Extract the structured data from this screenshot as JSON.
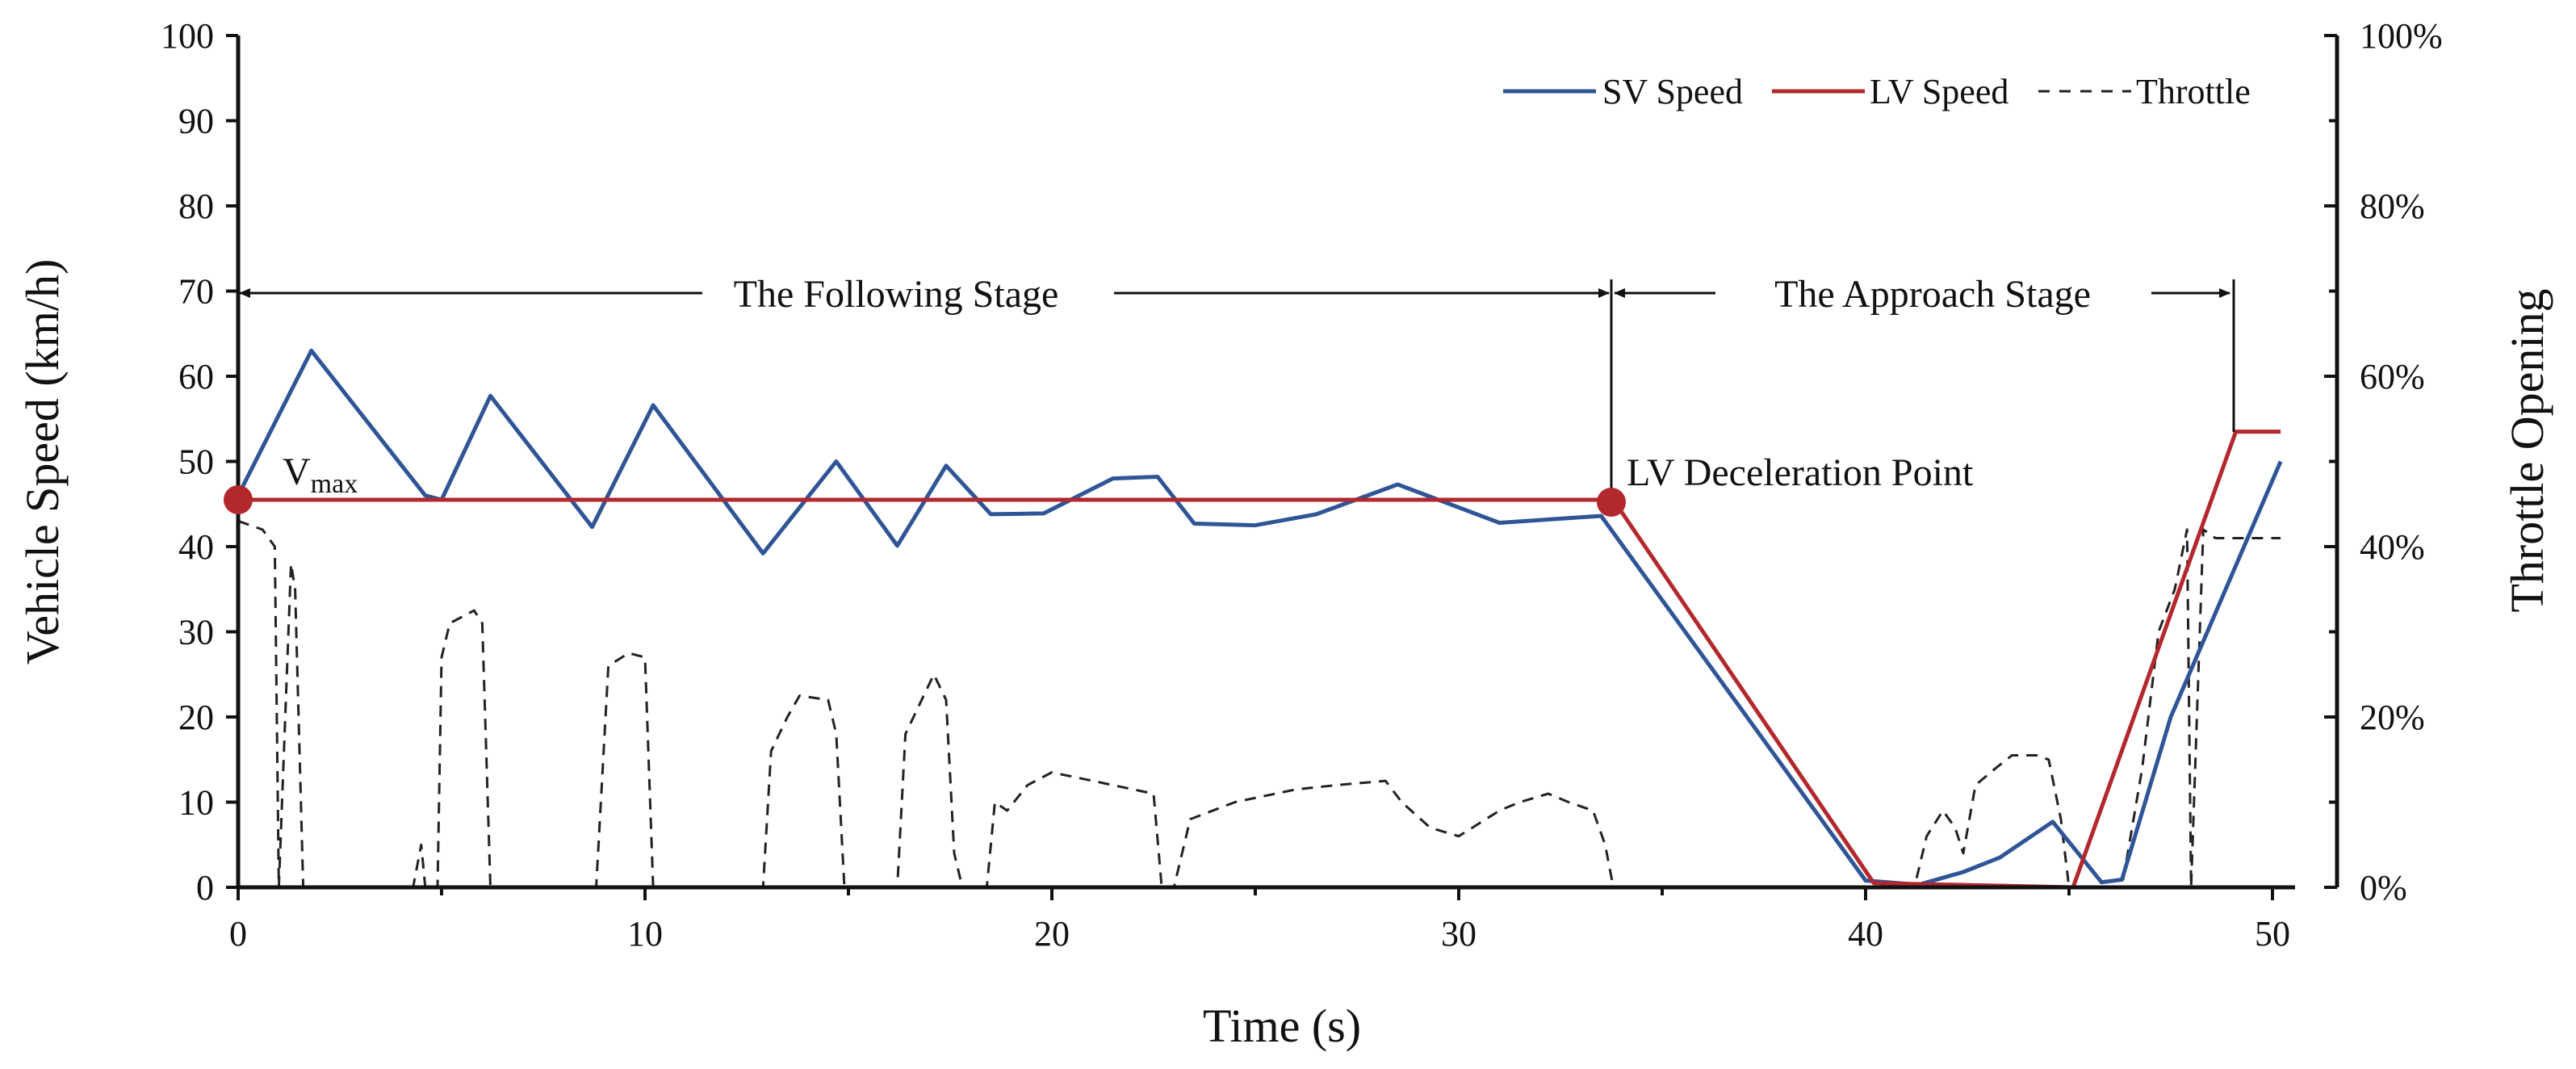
{
  "chart_data": {
    "type": "line",
    "xlabel": "Time (s)",
    "ylabel": "Vehicle Speed (km/h)",
    "ylabel_right": "Throttle Opening",
    "xlim": [
      0,
      51
    ],
    "ylim": [
      0,
      100
    ],
    "ylim_right": [
      0,
      100
    ],
    "xticks": [
      0,
      10,
      20,
      30,
      40,
      50
    ],
    "yticks": [
      0,
      10,
      20,
      30,
      40,
      50,
      60,
      70,
      80,
      90,
      100
    ],
    "yticks_right": [
      "0%",
      "20%",
      "40%",
      "60%",
      "80%",
      "100%"
    ],
    "yticks_right_values": [
      0,
      20,
      40,
      60,
      80,
      100
    ],
    "legend_position": "top-right",
    "series": [
      {
        "name": "SV Speed",
        "color": "#2f5597",
        "style": "solid",
        "x": [
          0,
          1.8,
          4.6,
          5.0,
          6.2,
          8.7,
          10.2,
          12.9,
          14.7,
          16.2,
          17.4,
          18.5,
          19.8,
          21.5,
          22.6,
          23.5,
          25.0,
          26.5,
          28.5,
          31.0,
          33.5,
          40.0,
          41.3,
          42.4,
          43.3,
          44.6,
          45.8,
          46.3,
          47.5,
          50.2
        ],
        "y": [
          46,
          63,
          46,
          45.5,
          57.7,
          42.3,
          56.6,
          39.2,
          50,
          40.1,
          49.5,
          43.8,
          43.9,
          48,
          48.2,
          42.7,
          42.5,
          43.8,
          47.3,
          42.8,
          43.6,
          0.8,
          0.3,
          1.8,
          3.5,
          7.7,
          0.6,
          0.9,
          20,
          50
        ]
      },
      {
        "name": "LV Speed",
        "color": "#b3282d",
        "style": "solid",
        "x": [
          0,
          33.8,
          40.2,
          45.1,
          49.1,
          50.2
        ],
        "y": [
          45.5,
          45.5,
          0.5,
          0,
          53.5,
          53.5
        ]
      },
      {
        "name": "Throttle",
        "color": "#222222",
        "style": "dashed",
        "axis": "right",
        "x": [
          0,
          0.6,
          0.9,
          1.0,
          1.3,
          1.4,
          1.6,
          1.9,
          2.0,
          4.3,
          4.5,
          4.6,
          4.9,
          5.0,
          5.2,
          5.8,
          6.0,
          6.2,
          6.3,
          8.6,
          8.8,
          9.1,
          9.6,
          10.0,
          10.2,
          12.9,
          13.1,
          13.5,
          13.8,
          14.5,
          14.7,
          14.9,
          16.2,
          16.4,
          16.8,
          17.1,
          17.4,
          17.6,
          17.8,
          18.4,
          18.6,
          18.9,
          19.4,
          20.0,
          21.0,
          22.5,
          22.7,
          23.0,
          23.4,
          24.5,
          26.0,
          27.0,
          28.2,
          28.6,
          29.3,
          30.0,
          31.0,
          31.5,
          32.2,
          32.7,
          33.3,
          33.6,
          33.8,
          41.0,
          41.2,
          41.5,
          41.9,
          42.2,
          42.4,
          42.7,
          43.2,
          43.6,
          44.2,
          44.5,
          44.8,
          45.0,
          46.3,
          46.8,
          47.2,
          47.6,
          47.9,
          48.0,
          48.3,
          48.6,
          49.2,
          50.2
        ],
        "y": [
          43,
          42,
          40,
          0,
          38,
          35,
          0,
          0,
          0,
          0,
          5,
          0,
          0,
          27,
          31,
          32.5,
          31,
          0,
          0,
          0,
          0,
          26,
          27.5,
          27,
          0,
          0,
          16,
          20,
          22.5,
          22,
          18,
          0,
          0,
          18,
          22,
          25,
          22,
          4,
          0,
          0,
          10,
          9,
          12,
          13.5,
          12.5,
          11,
          0,
          0,
          8,
          10,
          11.5,
          12,
          12.5,
          10,
          7,
          6,
          9,
          10,
          11,
          10,
          9,
          5,
          0,
          0,
          0,
          6,
          9,
          7,
          4,
          12,
          14,
          15.5,
          15.5,
          15,
          8,
          0,
          0,
          14,
          30,
          35,
          42,
          0,
          42,
          41,
          41,
          41
        ]
      }
    ],
    "annotations": {
      "following_stage": "The Following Stage",
      "approach_stage": "The Approach Stage",
      "decel_point": "LV Deceleration  Point",
      "vmax_main": "V",
      "vmax_sub": "max",
      "following_range": [
        0,
        33.8
      ],
      "approach_range": [
        33.8,
        49.2
      ],
      "stage_arrow_speed": 70,
      "vmax_point": [
        0,
        45.5
      ],
      "decel_point_xy": [
        33.8,
        45.5
      ]
    }
  }
}
